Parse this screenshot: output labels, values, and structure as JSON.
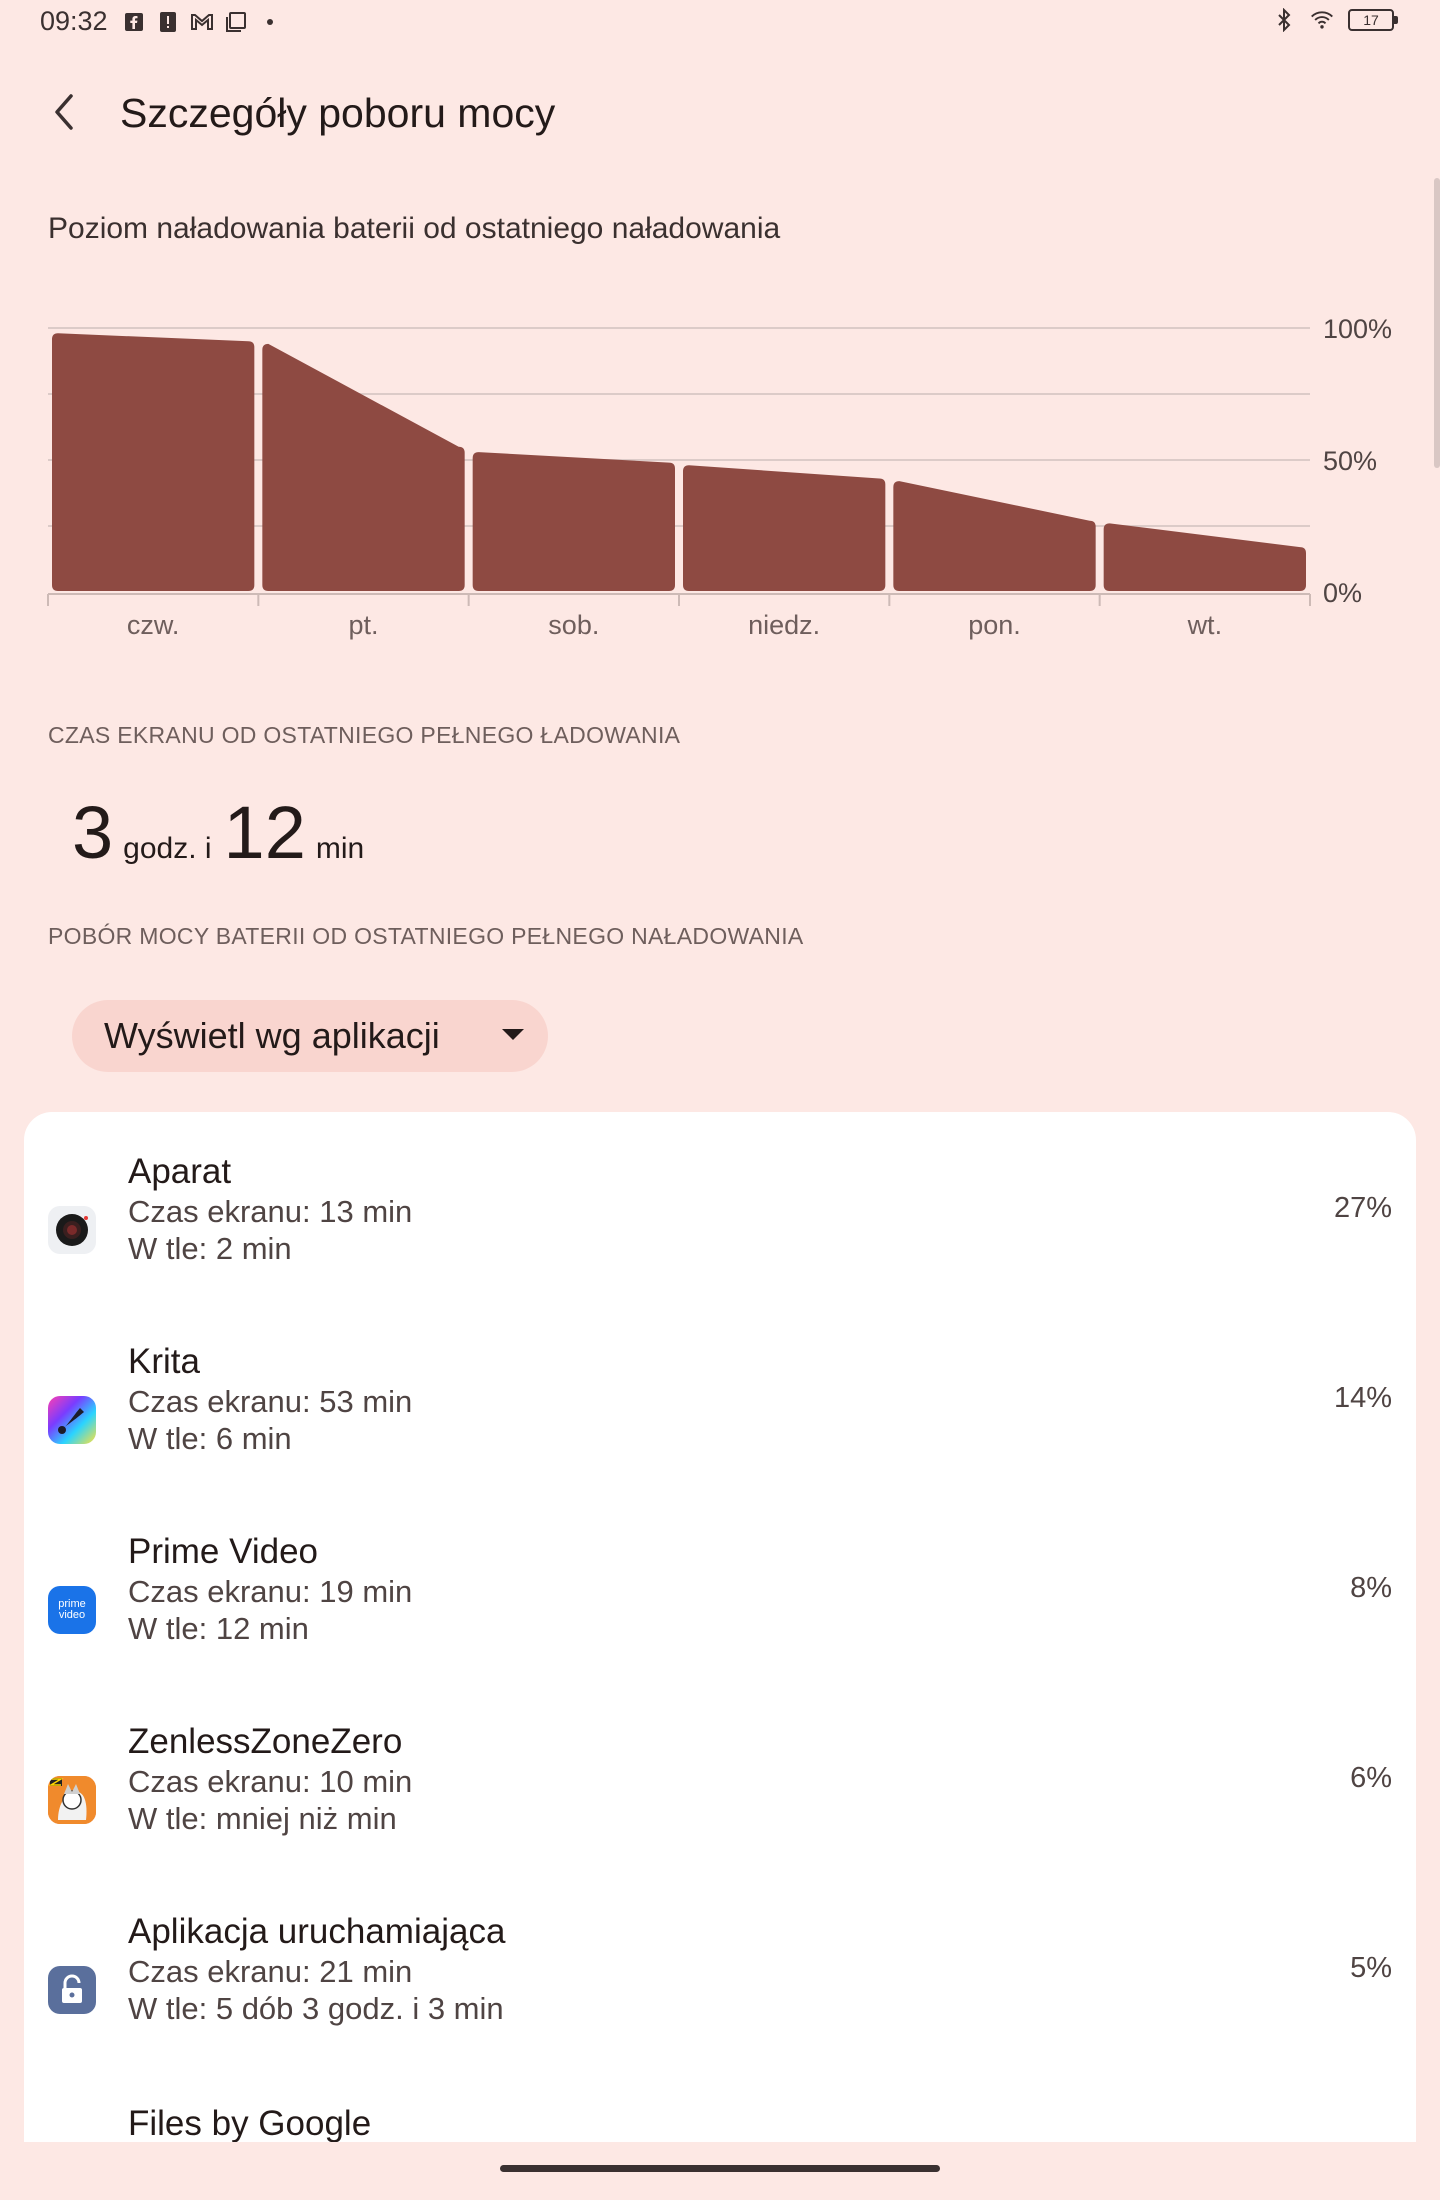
{
  "status_bar": {
    "time": "09:32",
    "left_icons": [
      "facebook-notification-icon",
      "alert-notification-icon",
      "gmail-notification-icon",
      "screenshot-notification-icon",
      "more-dot-icon"
    ],
    "right_icons": [
      "bluetooth-icon",
      "wifi-icon",
      "battery-icon"
    ],
    "battery_level": "17"
  },
  "header": {
    "title": "Szczegóły poboru mocy"
  },
  "battery_chart": {
    "title": "Poziom naładowania baterii od ostatniego naładowania",
    "y_ticks": [
      "100%",
      "50%",
      "0%"
    ],
    "bar_color": "#8e4a42",
    "chart_data": {
      "type": "area",
      "categories": [
        "czw.",
        "pt.",
        "sob.",
        "niedz.",
        "pon.",
        "wt."
      ],
      "series": [
        {
          "segments": [
            {
              "start": 98,
              "end": 95
            },
            {
              "start": 94,
              "end": 55
            },
            {
              "start": 53,
              "end": 49
            },
            {
              "start": 48,
              "end": 43
            },
            {
              "start": 42,
              "end": 27
            },
            {
              "start": 26,
              "end": 17
            }
          ]
        }
      ],
      "ylim": [
        0,
        100
      ],
      "grid": true
    }
  },
  "screen_time": {
    "header": "CZAS EKRANU OD OSTATNIEGO PEŁNEGO ŁADOWANIA",
    "hours": "3",
    "hours_unit": "godz. i",
    "minutes": "12",
    "minutes_unit": "min"
  },
  "usage": {
    "header": "POBÓR MOCY BATERII OD OSTATNIEGO PEŁNEGO NAŁADOWANIA",
    "view_selector": "Wyświetl wg aplikacji",
    "apps": [
      {
        "name": "Aparat",
        "line1": "Czas ekranu: 13 min",
        "line2": "W tle: 2 min",
        "percent": "27%",
        "icon": "camera-app-icon"
      },
      {
        "name": "Krita",
        "line1": "Czas ekranu: 53 min",
        "line2": "W tle: 6 min",
        "percent": "14%",
        "icon": "krita-app-icon"
      },
      {
        "name": "Prime Video",
        "line1": "Czas ekranu: 19 min",
        "line2": "W tle: 12 min",
        "percent": "8%",
        "icon": "prime-video-app-icon",
        "icon_text": "prime video"
      },
      {
        "name": "ZenlessZoneZero",
        "line1": "Czas ekranu: 10 min",
        "line2": "W tle: mniej niż min",
        "percent": "6%",
        "icon": "zenless-zone-zero-app-icon"
      },
      {
        "name": "Aplikacja uruchamiająca",
        "line1": "Czas ekranu: 21 min",
        "line2": "W tle: 5 dób 3 godz. i 3 min",
        "percent": "5%",
        "icon": "launcher-app-icon"
      },
      {
        "name": "Files by Google",
        "line1": "",
        "line2": "",
        "percent": "",
        "icon": ""
      }
    ]
  }
}
